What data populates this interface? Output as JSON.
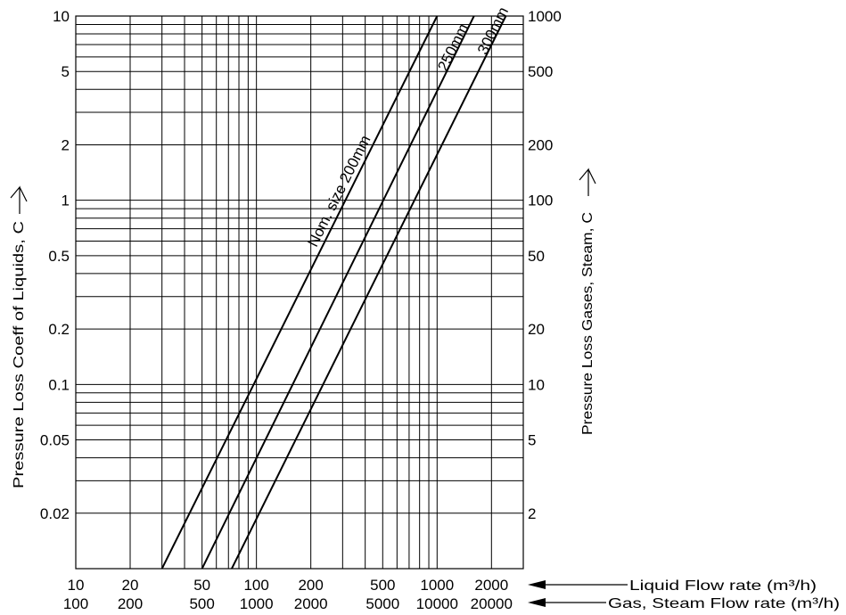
{
  "chart_data": {
    "type": "line",
    "x_scale": "log",
    "y_scale": "log",
    "xlim": [
      10,
      3000
    ],
    "ylim": [
      0.01,
      10
    ],
    "x2lim": [
      100,
      30000
    ],
    "y2lim": [
      1,
      1000
    ],
    "grid": true,
    "legend": "none",
    "x_tick_labels": [
      "10",
      "20",
      "50",
      "100",
      "200",
      "500",
      "1000",
      "2000"
    ],
    "x_ticks": [
      10,
      20,
      50,
      100,
      200,
      500,
      1000,
      2000
    ],
    "x2_tick_labels": [
      "100",
      "200",
      "500",
      "1000",
      "2000",
      "5000",
      "10000",
      "20000"
    ],
    "x2_ticks": [
      100,
      200,
      500,
      1000,
      2000,
      5000,
      10000,
      20000
    ],
    "y_tick_labels": [
      "10",
      "5",
      "2",
      "1",
      "0.5",
      "0.2",
      "0.1",
      "0.05",
      "0.02"
    ],
    "y_ticks": [
      10,
      5,
      2,
      1,
      0.5,
      0.2,
      0.1,
      0.05,
      0.02
    ],
    "y2_tick_labels": [
      "1000",
      "500",
      "200",
      "100",
      "50",
      "20",
      "10",
      "5",
      "2"
    ],
    "y2_ticks": [
      1000,
      500,
      200,
      100,
      50,
      20,
      10,
      5,
      2
    ],
    "xlabel": "Liquid Flow rate (m³/h)",
    "x2label": "Gas, Steam Flow rate (m³/h)",
    "ylabel": "Pressure Loss Coeff of Liquids, C",
    "y2label": "Pressure Loss Gases, Steam, C",
    "series": [
      {
        "name": "Nom. size 200mm",
        "x": [
          30,
          1000
        ],
        "y": [
          0.01,
          10
        ]
      },
      {
        "name": "250mm",
        "x": [
          50,
          1600
        ],
        "y": [
          0.01,
          10
        ]
      },
      {
        "name": "300mm",
        "x": [
          73,
          2400
        ],
        "y": [
          0.01,
          10
        ]
      }
    ]
  }
}
